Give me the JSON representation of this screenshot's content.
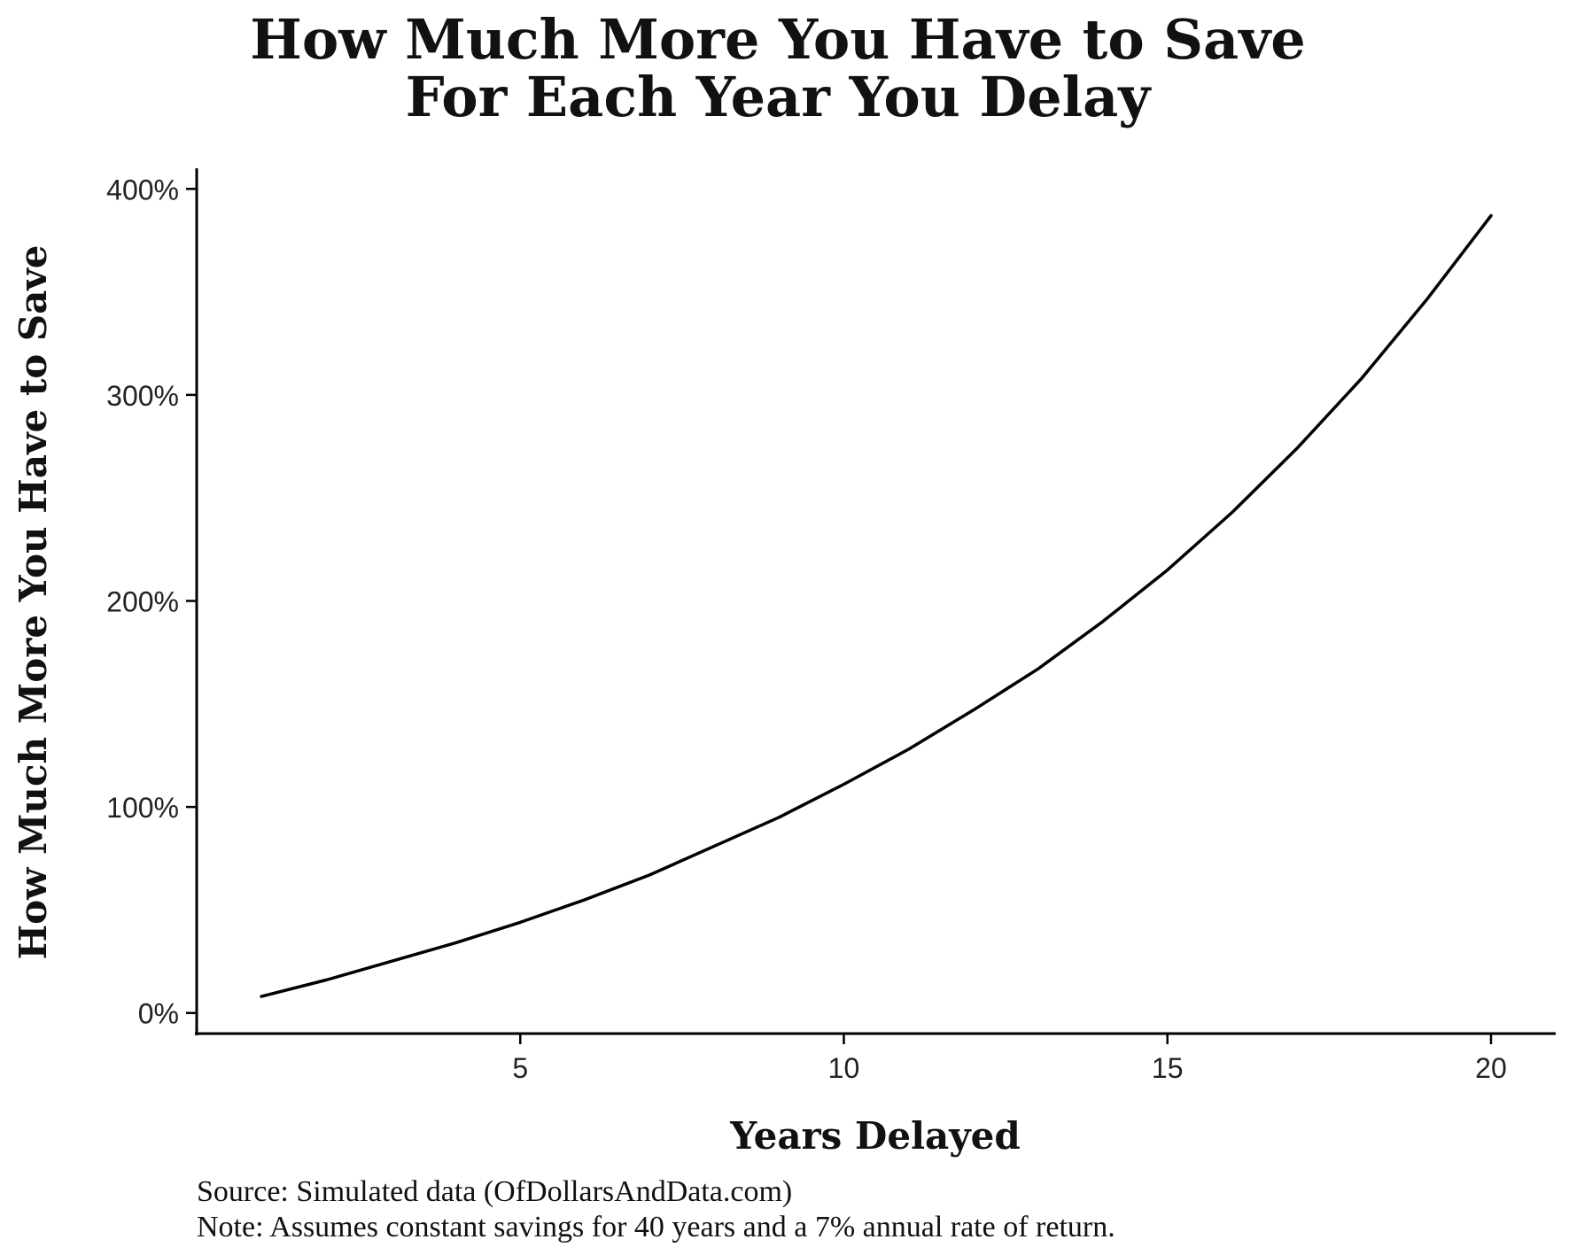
{
  "chart_data": {
    "type": "line",
    "title_lines": [
      "How Much More You Have to Save",
      "For Each Year You Delay"
    ],
    "xlabel": "Years Delayed",
    "ylabel": "How Much More You Have to Save",
    "xlim": [
      0,
      21
    ],
    "ylim": [
      -10,
      410
    ],
    "x_ticks": [
      5,
      10,
      15,
      20
    ],
    "x_tick_labels": [
      "5",
      "10",
      "15",
      "20"
    ],
    "y_ticks": [
      0,
      100,
      200,
      300,
      400
    ],
    "y_tick_labels": [
      "0%",
      "100%",
      "200%",
      "300%",
      "400%"
    ],
    "grid": false,
    "legend": "none",
    "series": [
      {
        "x": [
          1,
          2,
          3,
          4,
          5,
          6,
          7,
          8,
          9,
          10,
          11,
          12,
          13,
          14,
          15,
          16,
          17,
          18,
          19,
          20
        ],
        "values": [
          8,
          16,
          25,
          34,
          44,
          55,
          67,
          81,
          95,
          111,
          128,
          147,
          167,
          190,
          215,
          243,
          274,
          308,
          346,
          387
        ]
      }
    ],
    "colors": {
      "line": "#000000",
      "axis": "#000000",
      "background": "#ffffff"
    }
  },
  "caption": {
    "source": "Source: Simulated data (OfDollarsAndData.com)",
    "note": "Note: Assumes constant savings for 40 years and a 7% annual rate of return."
  }
}
